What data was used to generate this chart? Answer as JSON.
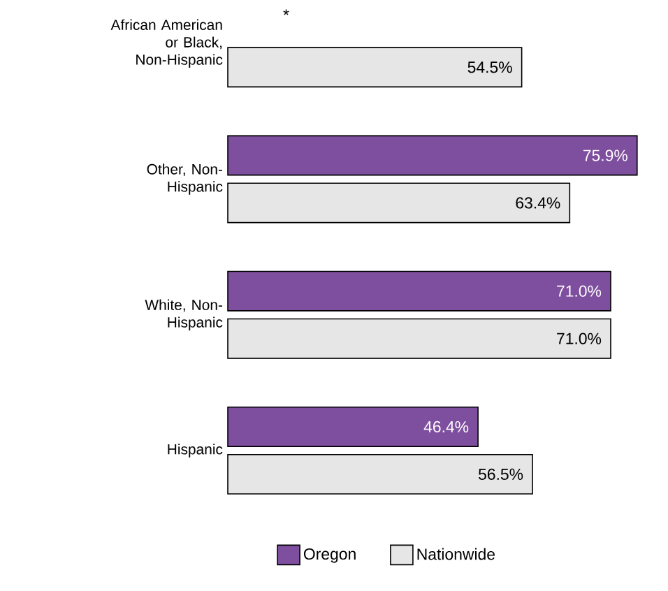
{
  "chart_data": {
    "type": "bar",
    "orientation": "horizontal",
    "categories": [
      "African American or Black, Non-Hispanic",
      "Other, Non-Hispanic",
      "White, Non-Hispanic",
      "Hispanic"
    ],
    "series": [
      {
        "name": "Oregon",
        "color": "#7f4f9f",
        "values": [
          null,
          75.9,
          71.0,
          46.4
        ],
        "value_labels": [
          "*",
          "75.9%",
          "71.0%",
          "46.4%"
        ]
      },
      {
        "name": "Nationwide",
        "color": "#e6e6e6",
        "values": [
          54.5,
          63.4,
          71.0,
          56.5
        ],
        "value_labels": [
          "54.5%",
          "63.4%",
          "71.0%",
          "56.5%"
        ]
      }
    ],
    "legend": "bottom"
  }
}
